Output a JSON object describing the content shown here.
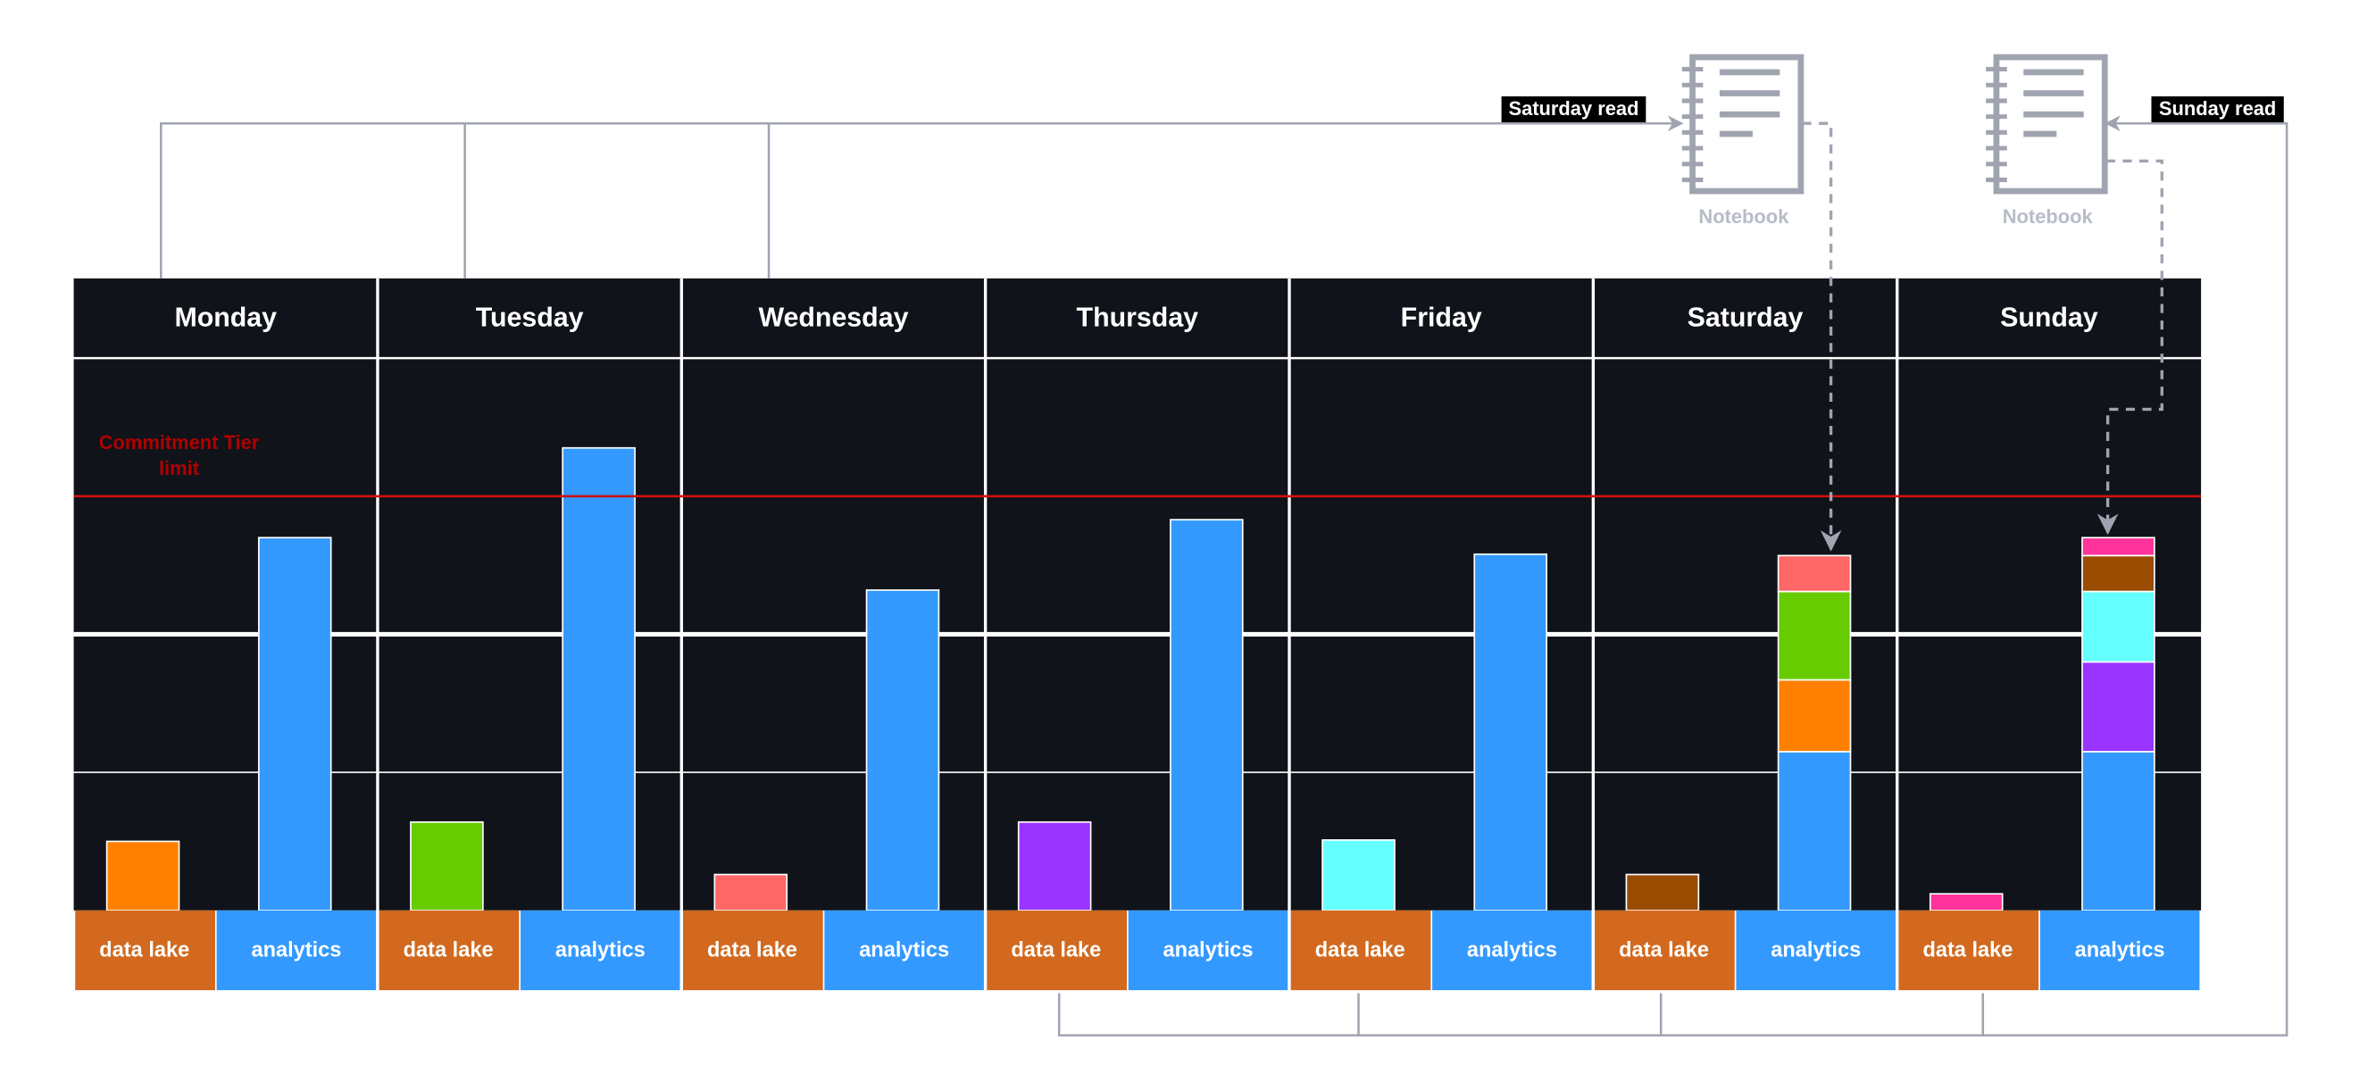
{
  "chart_data": {
    "type": "bar",
    "ylim": [
      0,
      4
    ],
    "limit": 3.0,
    "limit_label": "Commitment Tier limit",
    "days": [
      {
        "name": "Monday",
        "data_lake": {
          "label": "data lake",
          "value": 0.5,
          "color": "#ff8000"
        },
        "analytics": {
          "label": "analytics",
          "segments": [
            {
              "value": 2.7,
              "color": "#3399ff"
            }
          ]
        }
      },
      {
        "name": "Tuesday",
        "data_lake": {
          "label": "data lake",
          "value": 0.64,
          "color": "#66cc00"
        },
        "analytics": {
          "label": "analytics",
          "segments": [
            {
              "value": 3.35,
              "color": "#3399ff"
            }
          ]
        }
      },
      {
        "name": "Wednesday",
        "data_lake": {
          "label": "data lake",
          "value": 0.26,
          "color": "#ff6666"
        },
        "analytics": {
          "label": "analytics",
          "segments": [
            {
              "value": 2.32,
              "color": "#3399ff"
            }
          ]
        }
      },
      {
        "name": "Thursday",
        "data_lake": {
          "label": "data lake",
          "value": 0.64,
          "color": "#9933ff"
        },
        "analytics": {
          "label": "analytics",
          "segments": [
            {
              "value": 2.83,
              "color": "#3399ff"
            }
          ]
        }
      },
      {
        "name": "Friday",
        "data_lake": {
          "label": "data lake",
          "value": 0.51,
          "color": "#66ffff"
        },
        "analytics": {
          "label": "analytics",
          "segments": [
            {
              "value": 2.58,
              "color": "#3399ff"
            }
          ]
        }
      },
      {
        "name": "Saturday",
        "data_lake": {
          "label": "data lake",
          "value": 0.26,
          "color": "#994c00"
        },
        "analytics": {
          "label": "analytics",
          "segments": [
            {
              "value": 1.15,
              "color": "#3399ff"
            },
            {
              "value": 0.52,
              "color": "#ff8000"
            },
            {
              "value": 0.64,
              "color": "#66cc00"
            },
            {
              "value": 0.26,
              "color": "#ff6666"
            }
          ]
        }
      },
      {
        "name": "Sunday",
        "data_lake": {
          "label": "data lake",
          "value": 0.12,
          "color": "#ff3399"
        },
        "analytics": {
          "label": "analytics",
          "segments": [
            {
              "value": 1.15,
              "color": "#3399ff"
            },
            {
              "value": 0.65,
              "color": "#9933ff"
            },
            {
              "value": 0.51,
              "color": "#66ffff"
            },
            {
              "value": 0.26,
              "color": "#994c00"
            },
            {
              "value": 0.13,
              "color": "#ff3399"
            }
          ]
        }
      }
    ],
    "notebooks": [
      {
        "label": "Notebook",
        "read_label": "Saturday read"
      },
      {
        "label": "Notebook",
        "read_label": "Sunday read"
      }
    ]
  }
}
